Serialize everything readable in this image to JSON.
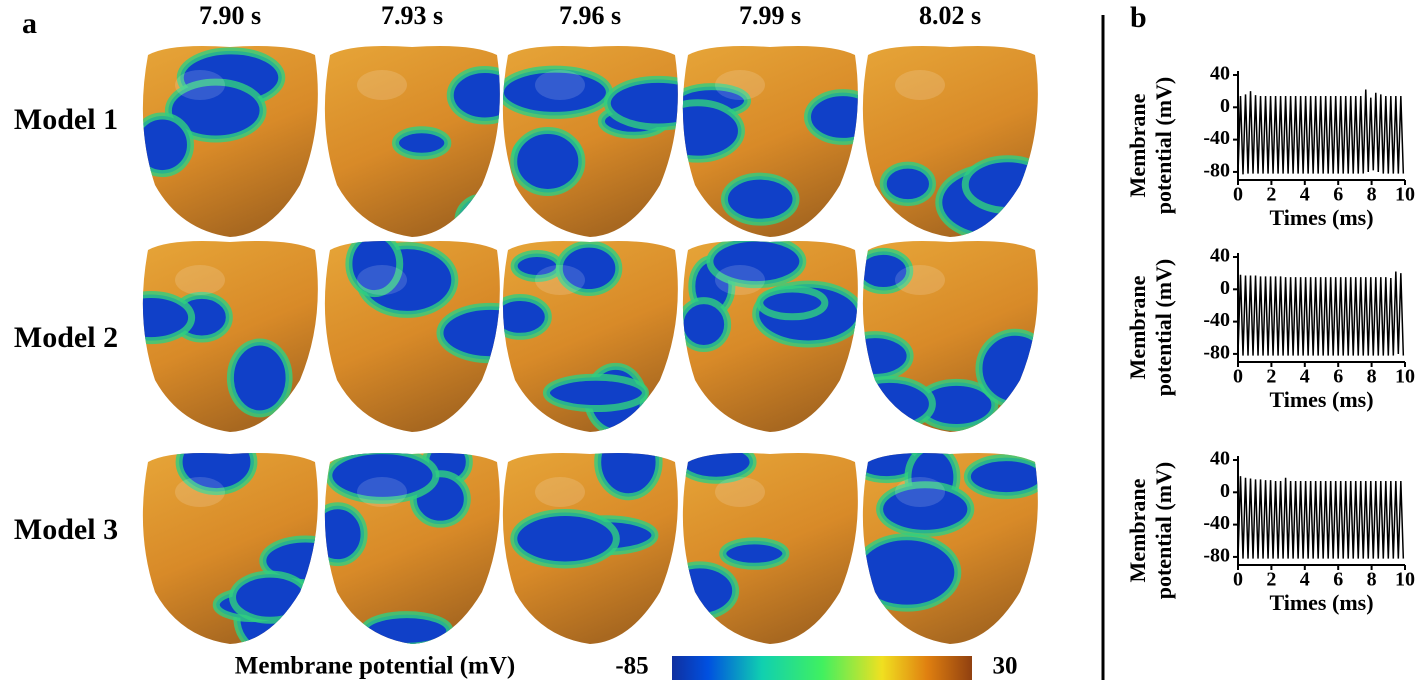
{
  "panel_a": {
    "label": "a",
    "times": [
      "7.90 s",
      "7.93 s",
      "7.96 s",
      "7.99 s",
      "8.02 s"
    ],
    "models": [
      "Model 1",
      "Model 2",
      "Model 3"
    ],
    "colorbar": {
      "label": "Membrane potential (mV)",
      "min": -85,
      "max": 30
    }
  },
  "panel_b": {
    "label": "b"
  },
  "chart_data": [
    {
      "type": "line",
      "color": "#000000",
      "xlabel": "Times (ms)",
      "ylabel": [
        "Membrane",
        "potential (mV)"
      ],
      "xlim": [
        0,
        10
      ],
      "xticks": [
        0,
        2,
        4,
        6,
        8,
        10
      ],
      "ylim": [
        -90,
        40
      ],
      "yticks": [
        40,
        0,
        -40,
        -80
      ],
      "x": [
        0,
        0.15,
        0.3,
        0.45,
        0.6,
        0.75,
        0.9,
        1.05,
        1.2,
        1.35,
        1.5,
        1.65,
        1.8,
        1.95,
        2.1,
        2.25,
        2.4,
        2.55,
        2.7,
        2.85,
        3,
        3.15,
        3.3,
        3.45,
        3.6,
        3.75,
        3.9,
        4.05,
        4.2,
        4.35,
        4.5,
        4.65,
        4.8,
        4.95,
        5.1,
        5.25,
        5.4,
        5.55,
        5.7,
        5.85,
        6,
        6.15,
        6.3,
        6.45,
        6.6,
        6.75,
        6.9,
        7.05,
        7.2,
        7.35,
        7.5,
        7.65,
        7.8,
        7.95,
        8.1,
        8.25,
        8.4,
        8.55,
        8.7,
        8.85,
        9,
        9.15,
        9.3,
        9.45,
        9.6,
        9.75,
        9.9
      ],
      "values": [
        -82,
        14,
        -83,
        16,
        -82,
        20,
        -82,
        15,
        -82,
        14,
        -82,
        14,
        -82,
        14,
        -82,
        14,
        -82,
        14,
        -82,
        14,
        -82,
        14,
        -82,
        14,
        -82,
        14,
        -82,
        14,
        -82,
        14,
        -82,
        14,
        -82,
        14,
        -82,
        14,
        -82,
        14,
        -82,
        14,
        -82,
        14,
        -82,
        14,
        -82,
        14,
        -82,
        14,
        -82,
        14,
        -82,
        22,
        -80,
        12,
        -78,
        18,
        -80,
        16,
        -82,
        14,
        -82,
        14,
        -82,
        14,
        -82,
        14,
        -82
      ]
    },
    {
      "type": "line",
      "color": "#000000",
      "xlabel": "Times (ms)",
      "ylabel": [
        "Membrane",
        "potential (mV)"
      ],
      "xlim": [
        0,
        10
      ],
      "xticks": [
        0,
        2,
        4,
        6,
        8,
        10
      ],
      "ylim": [
        -90,
        40
      ],
      "yticks": [
        40,
        0,
        -40,
        -80
      ],
      "x": [
        0,
        0.15,
        0.3,
        0.45,
        0.6,
        0.75,
        0.9,
        1.05,
        1.2,
        1.35,
        1.5,
        1.65,
        1.8,
        1.95,
        2.1,
        2.25,
        2.4,
        2.55,
        2.7,
        2.85,
        3,
        3.15,
        3.3,
        3.45,
        3.6,
        3.75,
        3.9,
        4.05,
        4.2,
        4.35,
        4.5,
        4.65,
        4.8,
        4.95,
        5.1,
        5.25,
        5.4,
        5.55,
        5.7,
        5.85,
        6,
        6.15,
        6.3,
        6.45,
        6.6,
        6.75,
        6.9,
        7.05,
        7.2,
        7.35,
        7.5,
        7.65,
        7.8,
        7.95,
        8.1,
        8.25,
        8.4,
        8.55,
        8.7,
        8.85,
        9,
        9.15,
        9.3,
        9.45,
        9.6,
        9.75,
        9.9
      ],
      "values": [
        -80,
        18,
        -82,
        17,
        -82,
        17,
        -82,
        17,
        -82,
        16,
        -82,
        16,
        -82,
        16,
        -82,
        16,
        -82,
        16,
        -82,
        15,
        -82,
        15,
        -82,
        15,
        -82,
        15,
        -82,
        15,
        -82,
        15,
        -82,
        15,
        -82,
        15,
        -82,
        15,
        -82,
        15,
        -82,
        15,
        -82,
        15,
        -82,
        15,
        -82,
        15,
        -82,
        15,
        -82,
        15,
        -82,
        15,
        -82,
        15,
        -82,
        15,
        -82,
        15,
        -82,
        15,
        -82,
        14,
        -82,
        22,
        -80,
        20,
        -82
      ]
    },
    {
      "type": "line",
      "color": "#000000",
      "xlabel": "Times (ms)",
      "ylabel": [
        "Membrane",
        "potential (mV)"
      ],
      "xlim": [
        0,
        10
      ],
      "xticks": [
        0,
        2,
        4,
        6,
        8,
        10
      ],
      "ylim": [
        -90,
        40
      ],
      "yticks": [
        40,
        0,
        -40,
        -80
      ],
      "x": [
        0,
        0.15,
        0.3,
        0.45,
        0.6,
        0.75,
        0.9,
        1.05,
        1.2,
        1.35,
        1.5,
        1.65,
        1.8,
        1.95,
        2.1,
        2.25,
        2.4,
        2.55,
        2.7,
        2.85,
        3,
        3.15,
        3.3,
        3.45,
        3.6,
        3.75,
        3.9,
        4.05,
        4.2,
        4.35,
        4.5,
        4.65,
        4.8,
        4.95,
        5.1,
        5.25,
        5.4,
        5.55,
        5.7,
        5.85,
        6,
        6.15,
        6.3,
        6.45,
        6.6,
        6.75,
        6.9,
        7.05,
        7.2,
        7.35,
        7.5,
        7.65,
        7.8,
        7.95,
        8.1,
        8.25,
        8.4,
        8.55,
        8.7,
        8.85,
        9,
        9.15,
        9.3,
        9.45,
        9.6,
        9.75,
        9.9
      ],
      "values": [
        -82,
        20,
        -82,
        18,
        -82,
        17,
        -82,
        16,
        -82,
        16,
        -82,
        15,
        -82,
        15,
        -82,
        14,
        -82,
        14,
        -82,
        18,
        -82,
        14,
        -82,
        14,
        -82,
        14,
        -82,
        14,
        -82,
        14,
        -82,
        14,
        -82,
        14,
        -82,
        14,
        -82,
        14,
        -82,
        14,
        -82,
        14,
        -82,
        14,
        -82,
        14,
        -82,
        14,
        -82,
        14,
        -82,
        14,
        -82,
        14,
        -82,
        14,
        -82,
        14,
        -82,
        14,
        -82,
        14,
        -82,
        14,
        -82,
        14,
        -82
      ]
    }
  ]
}
